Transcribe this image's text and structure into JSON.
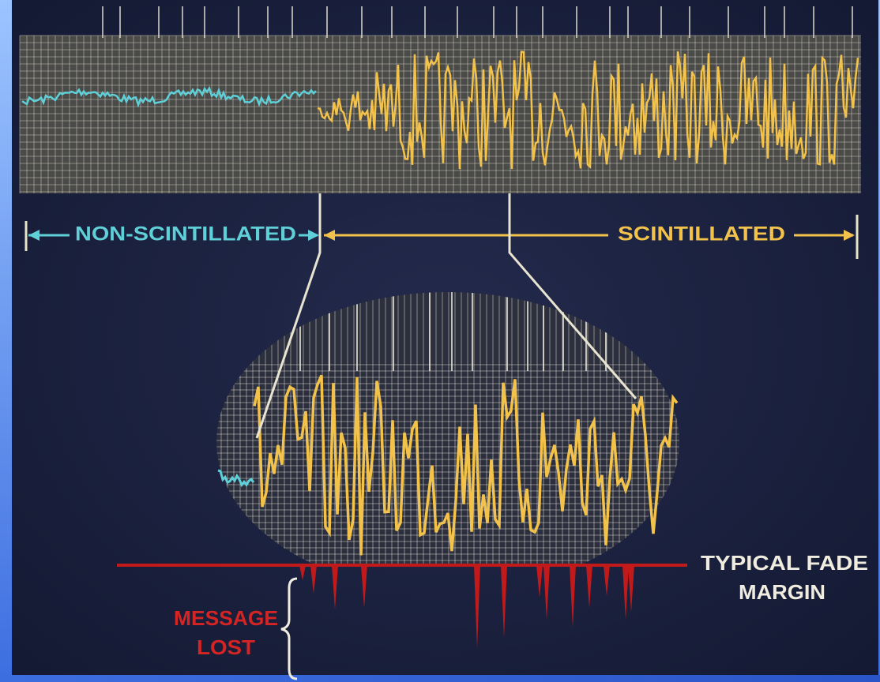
{
  "labels": {
    "non_scintillated": "NON-SCINTILLATED",
    "scintillated": "SCINTILLATED",
    "fade_margin": [
      "TYPICAL FADE",
      "MARGIN"
    ],
    "message_lost": [
      "MESSAGE",
      "LOST"
    ]
  }
}
